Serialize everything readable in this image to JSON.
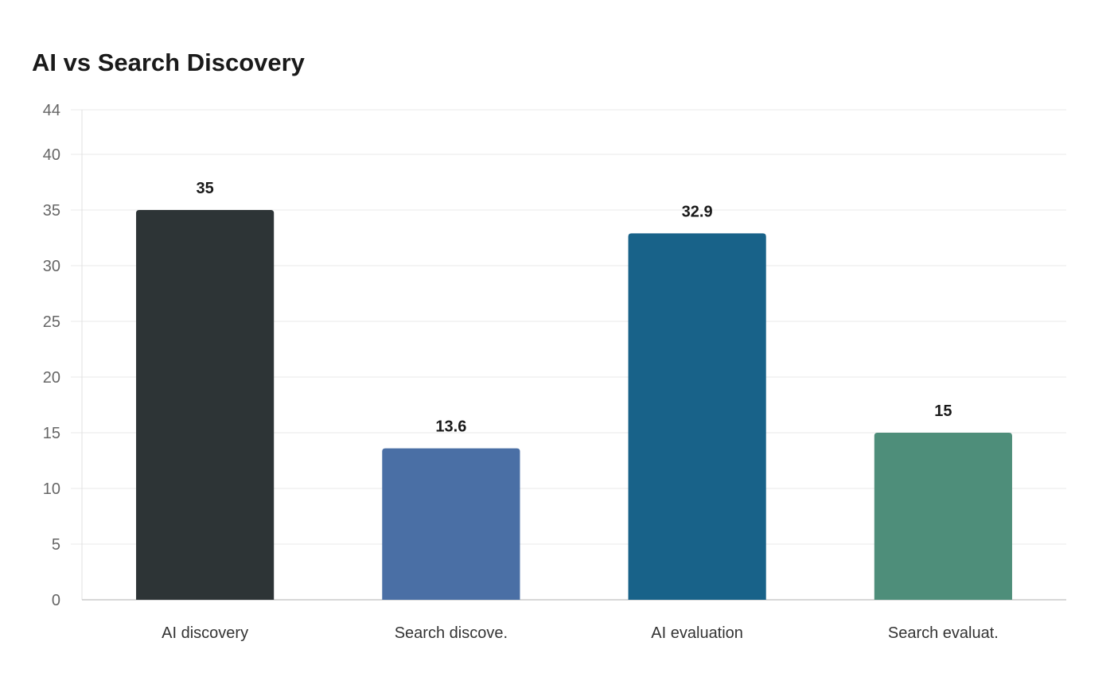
{
  "chart_data": {
    "type": "bar",
    "title": "AI vs Search Discovery",
    "xlabel": "",
    "ylabel": "",
    "categories": [
      "AI discovery",
      "Search discove.",
      "AI evaluation",
      "Search evaluat."
    ],
    "values": [
      35,
      13.6,
      32.9,
      15
    ],
    "data_labels": [
      "35",
      "13.6",
      "32.9",
      "15"
    ],
    "colors": [
      "#2d3436",
      "#4a6fa5",
      "#186289",
      "#4e8e7a"
    ],
    "ylim": [
      0,
      44
    ],
    "yticks": [
      0,
      5,
      10,
      15,
      20,
      25,
      30,
      35,
      40,
      44
    ],
    "grid": true,
    "legend": "none"
  }
}
